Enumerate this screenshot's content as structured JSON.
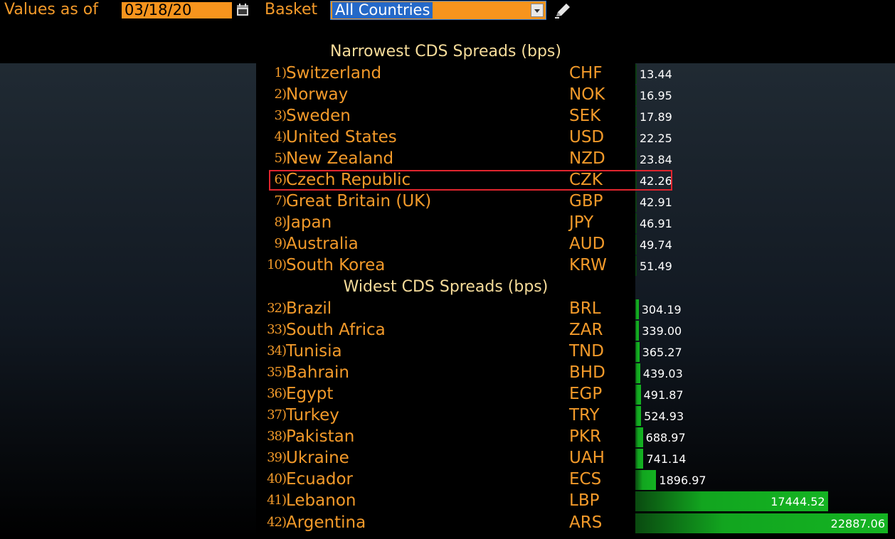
{
  "toolbar": {
    "values_as_of_label": "Values as of",
    "date_value": "03/18/20",
    "basket_label": "Basket",
    "basket_value": "All Countries"
  },
  "narrowest": {
    "title": "Narrowest CDS Spreads (bps)",
    "rows": [
      {
        "rank": "1)",
        "country": "Switzerland",
        "ccy": "CHF",
        "value": "13.44"
      },
      {
        "rank": "2)",
        "country": "Norway",
        "ccy": "NOK",
        "value": "16.95"
      },
      {
        "rank": "3)",
        "country": "Sweden",
        "ccy": "SEK",
        "value": "17.89"
      },
      {
        "rank": "4)",
        "country": "United States",
        "ccy": "USD",
        "value": "22.25"
      },
      {
        "rank": "5)",
        "country": "New Zealand",
        "ccy": "NZD",
        "value": "23.84"
      },
      {
        "rank": "6)",
        "country": "Czech Republic",
        "ccy": "CZK",
        "value": "42.26"
      },
      {
        "rank": "7)",
        "country": "Great Britain (UK)",
        "ccy": "GBP",
        "value": "42.91"
      },
      {
        "rank": "8)",
        "country": "Japan",
        "ccy": "JPY",
        "value": "46.91"
      },
      {
        "rank": "9)",
        "country": "Australia",
        "ccy": "AUD",
        "value": "49.74"
      },
      {
        "rank": "10)",
        "country": "South Korea",
        "ccy": "KRW",
        "value": "51.49"
      }
    ]
  },
  "widest": {
    "title": "Widest CDS Spreads (bps)",
    "rows": [
      {
        "rank": "32)",
        "country": "Brazil",
        "ccy": "BRL",
        "value": "304.19"
      },
      {
        "rank": "33)",
        "country": "South Africa",
        "ccy": "ZAR",
        "value": "339.00"
      },
      {
        "rank": "34)",
        "country": "Tunisia",
        "ccy": "TND",
        "value": "365.27"
      },
      {
        "rank": "35)",
        "country": "Bahrain",
        "ccy": "BHD",
        "value": "439.03"
      },
      {
        "rank": "36)",
        "country": "Egypt",
        "ccy": "EGP",
        "value": "491.87"
      },
      {
        "rank": "37)",
        "country": "Turkey",
        "ccy": "TRY",
        "value": "524.93"
      },
      {
        "rank": "38)",
        "country": "Pakistan",
        "ccy": "PKR",
        "value": "688.97"
      },
      {
        "rank": "39)",
        "country": "Ukraine",
        "ccy": "UAH",
        "value": "741.14"
      },
      {
        "rank": "40)",
        "country": "Ecuador",
        "ccy": "ECS",
        "value": "1896.97"
      },
      {
        "rank": "41)",
        "country": "Lebanon",
        "ccy": "LBP",
        "value": "17444.52"
      },
      {
        "rank": "42)",
        "country": "Argentina",
        "ccy": "ARS",
        "value": "22887.06"
      }
    ]
  },
  "highlighted_rank": "6)",
  "colors": {
    "label_orange": "#f39a2a",
    "title_cream": "#f6dc9a",
    "bar_green": "#14b422",
    "highlight_red": "#e0252e",
    "input_orange": "#f7941d",
    "selection_blue": "#2569c8"
  },
  "icons": {
    "date_picker": "calendar-icon",
    "basket_dropdown": "chevron-down-icon",
    "edit": "pencil-icon"
  }
}
